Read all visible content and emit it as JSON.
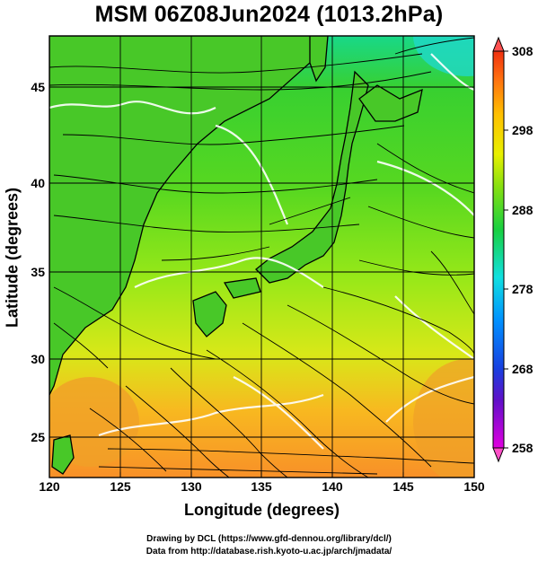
{
  "title": "MSM 06Z08Jun2024 (1013.2hPa)",
  "xaxis": {
    "label": "Longitude (degrees)",
    "range": [
      120,
      150
    ],
    "ticks": [
      "120",
      "125",
      "130",
      "135",
      "140",
      "145",
      "150"
    ]
  },
  "yaxis": {
    "label": "Latitude  (degrees)",
    "range": [
      22.4,
      47.6
    ],
    "ticks": [
      "25",
      "30",
      "35",
      "40",
      "45"
    ]
  },
  "colorbar": {
    "range": [
      258,
      308
    ],
    "ticks": [
      "258",
      "268",
      "278",
      "288",
      "298",
      "308"
    ],
    "colors": [
      "#e000e0",
      "#2020d0",
      "#0090ff",
      "#10e8e0",
      "#10d020",
      "#c8f000",
      "#ffd000",
      "#ff5000"
    ]
  },
  "credits": {
    "line1": "Drawing by DCL (https://www.gfd-dennou.org/library/dcl/)",
    "line2": "Data from http://database.rish.kyoto-u.ac.jp/arch/jmadata/"
  }
}
